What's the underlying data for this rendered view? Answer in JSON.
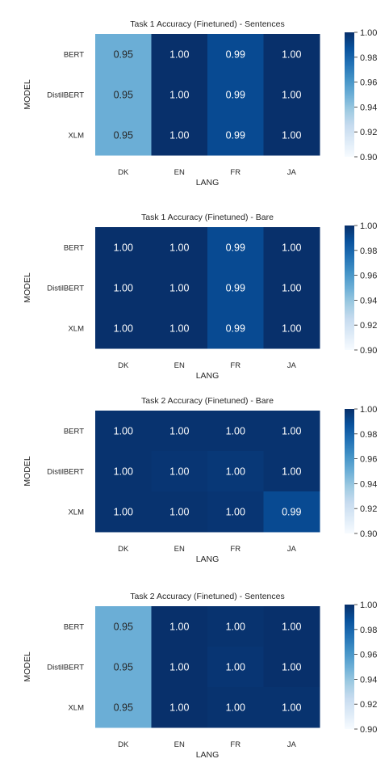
{
  "chart_data": [
    {
      "type": "heatmap",
      "title": "Task 1 Accuracy (Finetuned) - Sentences",
      "xlabel": "LANG",
      "ylabel": "MODEL",
      "x_categories": [
        "DK",
        "EN",
        "FR",
        "JA"
      ],
      "y_categories": [
        "BERT",
        "DistilBERT",
        "XLM"
      ],
      "values": [
        [
          0.95,
          1.0,
          0.99,
          1.0
        ],
        [
          0.95,
          1.0,
          0.99,
          1.0
        ],
        [
          0.95,
          1.0,
          0.99,
          1.0
        ]
      ],
      "labels": [
        [
          "0.95",
          "1.00",
          "0.99",
          "1.00"
        ],
        [
          "0.95",
          "1.00",
          "0.99",
          "1.00"
        ],
        [
          "0.95",
          "1.00",
          "0.99",
          "1.00"
        ]
      ],
      "vmin": 0.9,
      "vmax": 1.0,
      "colorbar_ticks": [
        "1.00",
        "0.98",
        "0.96",
        "0.94",
        "0.92",
        "0.90"
      ]
    },
    {
      "type": "heatmap",
      "title": "Task 1 Accuracy (Finetuned) - Bare",
      "xlabel": "LANG",
      "ylabel": "MODEL",
      "x_categories": [
        "DK",
        "EN",
        "FR",
        "JA"
      ],
      "y_categories": [
        "BERT",
        "DistilBERT",
        "XLM"
      ],
      "values": [
        [
          1.0,
          1.0,
          0.99,
          1.0
        ],
        [
          1.0,
          1.0,
          0.99,
          1.0
        ],
        [
          1.0,
          1.0,
          0.99,
          1.0
        ]
      ],
      "labels": [
        [
          "1.00",
          "1.00",
          "0.99",
          "1.00"
        ],
        [
          "1.00",
          "1.00",
          "0.99",
          "1.00"
        ],
        [
          "1.00",
          "1.00",
          "0.99",
          "1.00"
        ]
      ],
      "vmin": 0.9,
      "vmax": 1.0,
      "colorbar_ticks": [
        "1.00",
        "0.98",
        "0.96",
        "0.94",
        "0.92",
        "0.90"
      ]
    },
    {
      "type": "heatmap",
      "title": "Task 2 Accuracy (Finetuned) - Bare",
      "xlabel": "LANG",
      "ylabel": "MODEL",
      "x_categories": [
        "DK",
        "EN",
        "FR",
        "JA"
      ],
      "y_categories": [
        "BERT",
        "DistilBERT",
        "XLM"
      ],
      "values": [
        [
          0.999,
          0.999,
          0.999,
          0.999
        ],
        [
          0.999,
          0.998,
          0.997,
          0.999
        ],
        [
          0.999,
          0.999,
          0.998,
          0.99
        ]
      ],
      "labels": [
        [
          "1.00",
          "1.00",
          "1.00",
          "1.00"
        ],
        [
          "1.00",
          "1.00",
          "1.00",
          "1.00"
        ],
        [
          "1.00",
          "1.00",
          "1.00",
          "0.99"
        ]
      ],
      "vmin": 0.9,
      "vmax": 1.0,
      "colorbar_ticks": [
        "1.00",
        "0.98",
        "0.96",
        "0.94",
        "0.92",
        "0.90"
      ]
    },
    {
      "type": "heatmap",
      "title": "Task 2 Accuracy (Finetuned) - Sentences",
      "xlabel": "LANG",
      "ylabel": "MODEL",
      "x_categories": [
        "DK",
        "EN",
        "FR",
        "JA"
      ],
      "y_categories": [
        "BERT",
        "DistilBERT",
        "XLM"
      ],
      "values": [
        [
          0.95,
          1.0,
          0.999,
          1.0
        ],
        [
          0.95,
          1.0,
          0.998,
          1.0
        ],
        [
          0.95,
          1.0,
          0.999,
          0.999
        ]
      ],
      "labels": [
        [
          "0.95",
          "1.00",
          "1.00",
          "1.00"
        ],
        [
          "0.95",
          "1.00",
          "1.00",
          "1.00"
        ],
        [
          "0.95",
          "1.00",
          "1.00",
          "1.00"
        ]
      ],
      "vmin": 0.9,
      "vmax": 1.0,
      "colorbar_ticks": [
        "1.00",
        "0.98",
        "0.96",
        "0.94",
        "0.92",
        "0.90"
      ]
    }
  ],
  "colormap": {
    "name": "Blues",
    "stops": [
      [
        0.0,
        "#f7fbff"
      ],
      [
        0.125,
        "#deebf7"
      ],
      [
        0.25,
        "#c6dbef"
      ],
      [
        0.375,
        "#9ecae1"
      ],
      [
        0.5,
        "#6baed6"
      ],
      [
        0.625,
        "#4292c6"
      ],
      [
        0.75,
        "#2171b5"
      ],
      [
        0.875,
        "#08519c"
      ],
      [
        1.0,
        "#08306b"
      ]
    ]
  }
}
